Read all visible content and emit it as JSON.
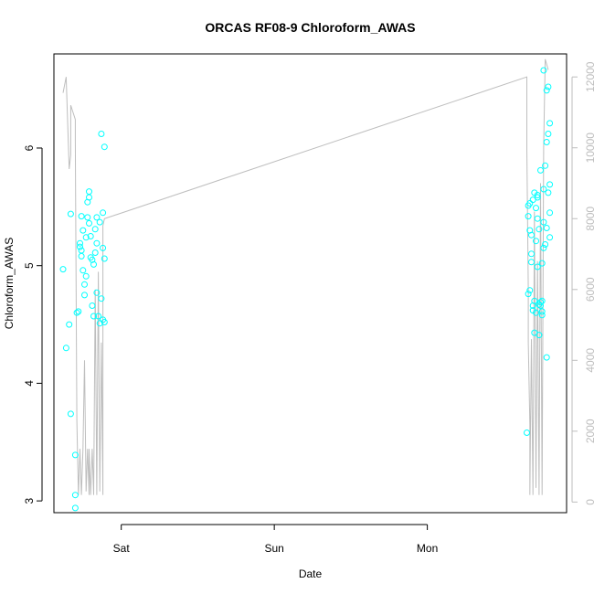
{
  "chart_data": {
    "type": "scatter",
    "title": "ORCAS RF08-9 Chloroform_AWAS",
    "xlabel": "Date",
    "ylabel": "Chloroform_AWAS",
    "x_ticks": [
      {
        "label": "Sat",
        "day": 1.0
      },
      {
        "label": "Sun",
        "day": 2.0
      },
      {
        "label": "Mon",
        "day": 3.0
      }
    ],
    "xlim_days": [
      0.56,
      3.91
    ],
    "ylim": [
      2.9,
      6.8
    ],
    "y_ticks": [
      3,
      4,
      5,
      6
    ],
    "y2_ticks": [
      0,
      2000,
      4000,
      6000,
      8000,
      10000,
      12000
    ],
    "y2lim": [
      -300,
      12650
    ],
    "colors": {
      "points": "#00ffff",
      "altitude_line": "#bebebe",
      "axis": "#000000",
      "right_axis": "#bdbdbd"
    },
    "series": [
      {
        "type": "scatter",
        "points": [
          [
            0.62,
            4.97
          ],
          [
            0.64,
            4.3
          ],
          [
            0.66,
            4.5
          ],
          [
            0.67,
            5.44
          ],
          [
            0.67,
            3.74
          ],
          [
            0.7,
            3.05
          ],
          [
            0.7,
            2.94
          ],
          [
            0.7,
            3.39
          ],
          [
            0.71,
            4.6
          ],
          [
            0.72,
            4.61
          ],
          [
            0.73,
            5.19
          ],
          [
            0.73,
            5.16
          ],
          [
            0.74,
            5.08
          ],
          [
            0.74,
            5.13
          ],
          [
            0.74,
            5.42
          ],
          [
            0.75,
            5.3
          ],
          [
            0.75,
            4.96
          ],
          [
            0.76,
            4.84
          ],
          [
            0.76,
            4.75
          ],
          [
            0.77,
            4.91
          ],
          [
            0.77,
            5.24
          ],
          [
            0.78,
            5.41
          ],
          [
            0.78,
            5.54
          ],
          [
            0.79,
            5.58
          ],
          [
            0.79,
            5.63
          ],
          [
            0.79,
            5.36
          ],
          [
            0.8,
            5.25
          ],
          [
            0.8,
            5.07
          ],
          [
            0.81,
            5.05
          ],
          [
            0.81,
            4.66
          ],
          [
            0.82,
            4.57
          ],
          [
            0.82,
            5.01
          ],
          [
            0.83,
            5.11
          ],
          [
            0.83,
            5.31
          ],
          [
            0.84,
            5.41
          ],
          [
            0.84,
            5.19
          ],
          [
            0.84,
            4.77
          ],
          [
            0.85,
            4.57
          ],
          [
            0.86,
            4.51
          ],
          [
            0.86,
            5.37
          ],
          [
            0.87,
            6.12
          ],
          [
            0.87,
            4.72
          ],
          [
            0.88,
            5.45
          ],
          [
            0.88,
            5.15
          ],
          [
            0.88,
            4.54
          ],
          [
            0.89,
            4.52
          ],
          [
            0.89,
            6.01
          ],
          [
            0.89,
            5.06
          ],
          [
            3.65,
            3.58
          ],
          [
            3.66,
            4.76
          ],
          [
            3.66,
            5.42
          ],
          [
            3.66,
            5.51
          ],
          [
            3.67,
            5.53
          ],
          [
            3.67,
            4.79
          ],
          [
            3.67,
            5.3
          ],
          [
            3.68,
            5.26
          ],
          [
            3.68,
            5.1
          ],
          [
            3.68,
            5.03
          ],
          [
            3.69,
            4.66
          ],
          [
            3.69,
            4.62
          ],
          [
            3.69,
            5.56
          ],
          [
            3.7,
            5.62
          ],
          [
            3.7,
            4.43
          ],
          [
            3.7,
            4.7
          ],
          [
            3.71,
            4.6
          ],
          [
            3.71,
            5.21
          ],
          [
            3.71,
            5.49
          ],
          [
            3.72,
            5.6
          ],
          [
            3.72,
            5.4
          ],
          [
            3.72,
            5.58
          ],
          [
            3.72,
            4.99
          ],
          [
            3.73,
            5.31
          ],
          [
            3.73,
            4.67
          ],
          [
            3.73,
            4.41
          ],
          [
            3.74,
            4.66
          ],
          [
            3.74,
            4.69
          ],
          [
            3.74,
            5.81
          ],
          [
            3.75,
            4.7
          ],
          [
            3.75,
            4.61
          ],
          [
            3.75,
            4.58
          ],
          [
            3.75,
            5.02
          ],
          [
            3.76,
            5.37
          ],
          [
            3.76,
            5.15
          ],
          [
            3.76,
            5.65
          ],
          [
            3.76,
            6.66
          ],
          [
            3.77,
            5.18
          ],
          [
            3.77,
            5.85
          ],
          [
            3.78,
            4.22
          ],
          [
            3.78,
            5.32
          ],
          [
            3.78,
            6.05
          ],
          [
            3.78,
            6.49
          ],
          [
            3.79,
            6.52
          ],
          [
            3.79,
            6.12
          ],
          [
            3.79,
            5.62
          ],
          [
            3.8,
            5.24
          ],
          [
            3.8,
            6.21
          ],
          [
            3.8,
            5.69
          ],
          [
            3.8,
            5.45
          ]
        ]
      },
      {
        "type": "line",
        "axis": "y2",
        "points": [
          [
            0.62,
            11550
          ],
          [
            0.64,
            12000
          ],
          [
            0.66,
            9400
          ],
          [
            0.67,
            9800
          ],
          [
            0.67,
            11200
          ],
          [
            0.7,
            10800
          ],
          [
            0.7,
            10200
          ],
          [
            0.71,
            2300
          ],
          [
            0.72,
            200
          ],
          [
            0.73,
            1500
          ],
          [
            0.74,
            200
          ],
          [
            0.75,
            1500
          ],
          [
            0.76,
            4000
          ],
          [
            0.77,
            300
          ],
          [
            0.78,
            1500
          ],
          [
            0.79,
            200
          ],
          [
            0.79,
            1500
          ],
          [
            0.8,
            200
          ],
          [
            0.81,
            1500
          ],
          [
            0.82,
            200
          ],
          [
            0.83,
            6000
          ],
          [
            0.84,
            200
          ],
          [
            0.85,
            6500
          ],
          [
            0.86,
            300
          ],
          [
            0.87,
            4500
          ],
          [
            0.88,
            200
          ],
          [
            0.88,
            7800
          ],
          [
            0.89,
            8000
          ],
          [
            0.89,
            8000
          ],
          [
            3.65,
            12000
          ],
          [
            3.65,
            10000
          ],
          [
            3.66,
            6000
          ],
          [
            3.66,
            4500
          ],
          [
            3.67,
            2200
          ],
          [
            3.67,
            200
          ],
          [
            3.68,
            4600
          ],
          [
            3.69,
            200
          ],
          [
            3.7,
            8200
          ],
          [
            3.71,
            400
          ],
          [
            3.72,
            6800
          ],
          [
            3.73,
            200
          ],
          [
            3.74,
            9000
          ],
          [
            3.75,
            200
          ],
          [
            3.76,
            10000
          ],
          [
            3.77,
            12500
          ],
          [
            3.79,
            12200
          ]
        ]
      }
    ]
  }
}
